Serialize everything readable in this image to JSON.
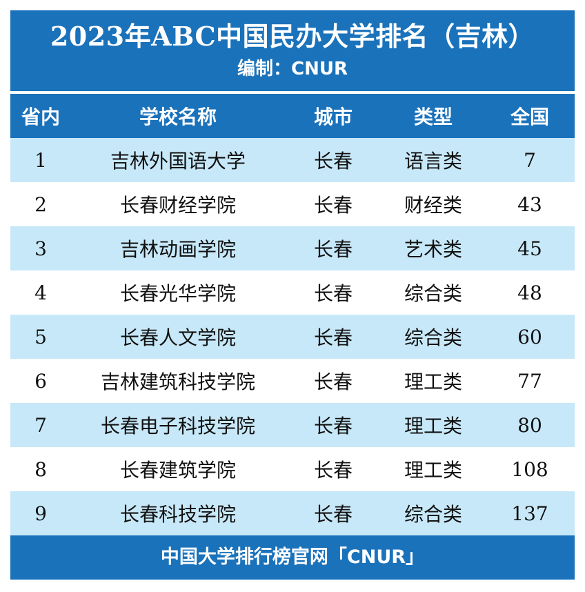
{
  "header": {
    "title": "2023年ABC中国民办大学排名（吉林）",
    "subtitle": "编制：CNUR"
  },
  "table": {
    "columns": [
      "省内",
      "学校名称",
      "城市",
      "类型",
      "全国"
    ],
    "rows": [
      {
        "rank": "1",
        "name": "吉林外国语大学",
        "city": "长春",
        "type": "语言类",
        "national": "7"
      },
      {
        "rank": "2",
        "name": "长春财经学院",
        "city": "长春",
        "type": "财经类",
        "national": "43"
      },
      {
        "rank": "3",
        "name": "吉林动画学院",
        "city": "长春",
        "type": "艺术类",
        "national": "45"
      },
      {
        "rank": "4",
        "name": "长春光华学院",
        "city": "长春",
        "type": "综合类",
        "national": "48"
      },
      {
        "rank": "5",
        "name": "长春人文学院",
        "city": "长春",
        "type": "综合类",
        "national": "60"
      },
      {
        "rank": "6",
        "name": "吉林建筑科技学院",
        "city": "长春",
        "type": "理工类",
        "national": "77"
      },
      {
        "rank": "7",
        "name": "长春电子科技学院",
        "city": "长春",
        "type": "理工类",
        "national": "80"
      },
      {
        "rank": "8",
        "name": "长春建筑学院",
        "city": "长春",
        "type": "理工类",
        "national": "108"
      },
      {
        "rank": "9",
        "name": "长春科技学院",
        "city": "长春",
        "type": "综合类",
        "national": "137"
      }
    ]
  },
  "footer": {
    "text": "中国大学排行榜官网「CNUR」"
  },
  "colors": {
    "header_blue": "#1a72bb",
    "row_light_blue": "#c7e8f8",
    "row_white": "#ffffff"
  }
}
